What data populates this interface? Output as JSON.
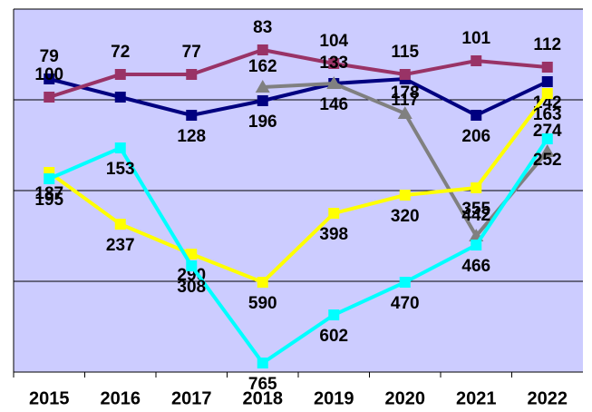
{
  "chart_data": {
    "type": "line",
    "categories": [
      "2015",
      "2016",
      "2017",
      "2018",
      "2019",
      "2020",
      "2021",
      "2022"
    ],
    "ylim": [
      0,
      4
    ],
    "yticks": [
      0,
      1,
      2,
      3,
      4
    ],
    "grid": true,
    "series": [
      {
        "color": "#000080",
        "marker": "square",
        "values": [
          3.23,
          3.03,
          2.83,
          2.99,
          3.18,
          3.23,
          2.83,
          3.2
        ],
        "value_labels": [
          "79",
          null,
          "128",
          "196",
          "146",
          "117",
          "206",
          "142"
        ]
      },
      {
        "color": "#993366",
        "marker": "square",
        "values": [
          3.03,
          3.28,
          3.28,
          3.55,
          3.4,
          3.28,
          3.43,
          3.36
        ],
        "value_labels": [
          "100",
          "72",
          "77",
          "83",
          "104",
          "115",
          "101",
          "112"
        ]
      },
      {
        "color": "#808080",
        "marker": "triangle",
        "values": [
          null,
          null,
          null,
          3.14,
          3.18,
          2.85,
          1.5,
          2.43
        ],
        "value_labels": [
          null,
          null,
          null,
          "162",
          "133",
          "178",
          "442",
          "274"
        ]
      },
      {
        "color": "#ffff00",
        "marker": "square",
        "values": [
          2.2,
          1.63,
          1.3,
          0.99,
          1.75,
          1.95,
          2.03,
          3.07
        ],
        "value_labels": [
          "187",
          "237",
          "290",
          "590",
          "398",
          "320",
          "355",
          "163"
        ]
      },
      {
        "color": "#00ffff",
        "marker": "square",
        "values": [
          2.13,
          2.47,
          1.17,
          0.1,
          0.63,
          0.99,
          1.4,
          2.57
        ],
        "value_labels": [
          "195",
          "153",
          "308",
          "765",
          "602",
          "470",
          "466",
          "252"
        ]
      }
    ]
  }
}
